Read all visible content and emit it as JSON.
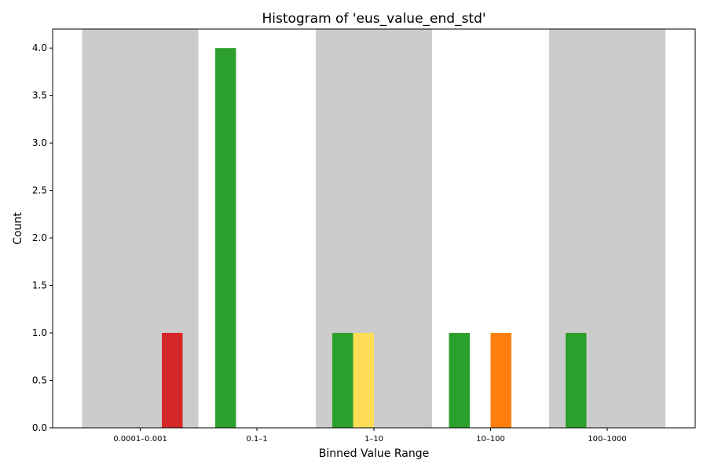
{
  "chart_data": {
    "type": "bar",
    "title": "Histogram of 'eus_value_end_std'",
    "xlabel": "Binned Value Range",
    "ylabel": "Count",
    "categories": [
      "0.0001–0.001",
      "0.1–1",
      "1–10",
      "10–100",
      "100–1000"
    ],
    "ylim": [
      0,
      4.2
    ],
    "yticks": [
      "0.0",
      "0.5",
      "1.0",
      "1.5",
      "2.0",
      "2.5",
      "3.0",
      "3.5",
      "4.0"
    ],
    "grid": false,
    "legend": "none",
    "background_bands": {
      "color": "#cccccc",
      "categories": [
        "0.0001–0.001",
        "1–10",
        "100–1000"
      ]
    },
    "series": [
      {
        "color": "#d62728",
        "values": [
          1,
          0,
          0,
          0,
          0
        ]
      },
      {
        "color": "#2ca02c",
        "values": [
          0,
          4,
          1,
          1,
          1
        ]
      },
      {
        "color": "#ffdd57",
        "values": [
          0,
          0,
          1,
          0,
          0
        ]
      },
      {
        "color": "#ff7f0e",
        "values": [
          0,
          0,
          0,
          1,
          0
        ]
      }
    ]
  }
}
